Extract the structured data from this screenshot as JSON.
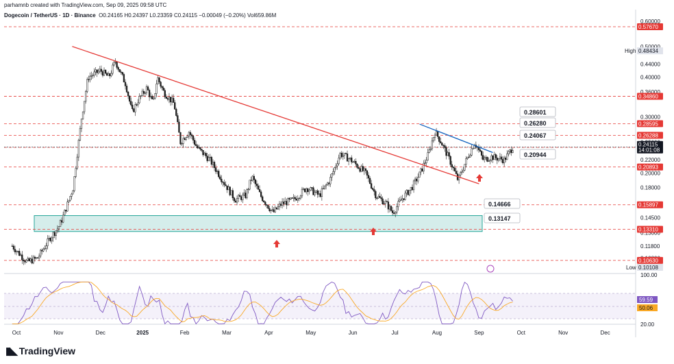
{
  "header": {
    "credit": "parhamnb created with TradingView.com, Sep 09, 2025 09:58 UTC",
    "symbol": "Dogecoin / TetherUS · 1D · Binance",
    "ohlc": "O0.24165 H0.24397 L0.23359 C0.24115 −0.00049 (−0.20%) Vol659.86M"
  },
  "branding": {
    "logo_text": "TradingView"
  },
  "colors": {
    "up": "#1e1e1e",
    "trendline_red": "#e53935",
    "trendline_blue": "#1565c0",
    "level_red": "#e53935",
    "support_zone": "#b2dfdb",
    "rsi_line": "#7e57c2",
    "rsi_ma": "#f9a825"
  },
  "chart_data": {
    "type": "candlestick",
    "scale": "log",
    "y_ticks": [
      "0.60000",
      "0.50000",
      "0.44000",
      "0.40000",
      "0.36000",
      "0.30000",
      "0.25000",
      "0.22000",
      "0.20000",
      "0.18000",
      "0.16000",
      "0.14500",
      "0.13000",
      "0.11800",
      "0.10800"
    ],
    "x_ticks": [
      "Oct",
      "Nov",
      "Dec",
      "2025",
      "Feb",
      "Mar",
      "Apr",
      "May",
      "Jun",
      "Jul",
      "Aug",
      "Sep",
      "Oct",
      "Nov",
      "Dec"
    ],
    "price_levels_red": [
      "0.57670",
      "0.34860",
      "0.28595",
      "0.26288",
      "0.24082",
      "0.20893",
      "0.15897",
      "0.13310",
      "0.10630"
    ],
    "current_price": "0.24115",
    "countdown": "14:01:08",
    "high_label": "High",
    "high_value": "0.48434",
    "low_label": "Low",
    "low_value": "0.10108",
    "callouts": [
      "0.28601",
      "0.26280",
      "0.24067",
      "0.20944",
      "0.14666",
      "0.13147"
    ],
    "support_zone": [
      0.131,
      0.147
    ],
    "trendlines": [
      {
        "color": "red",
        "from": [
          "Nov",
          0.5
        ],
        "to": [
          "Sep",
          0.185
        ]
      },
      {
        "color": "blue",
        "from": [
          "Jul",
          0.285
        ],
        "to": [
          "Sep",
          0.232
        ]
      }
    ],
    "arrows_up": [
      "Apr",
      "Jun",
      "Sep"
    ],
    "rsi": {
      "ticks": [
        "100.00",
        "20.00"
      ],
      "value": "59.59",
      "ma": "50.06"
    }
  }
}
